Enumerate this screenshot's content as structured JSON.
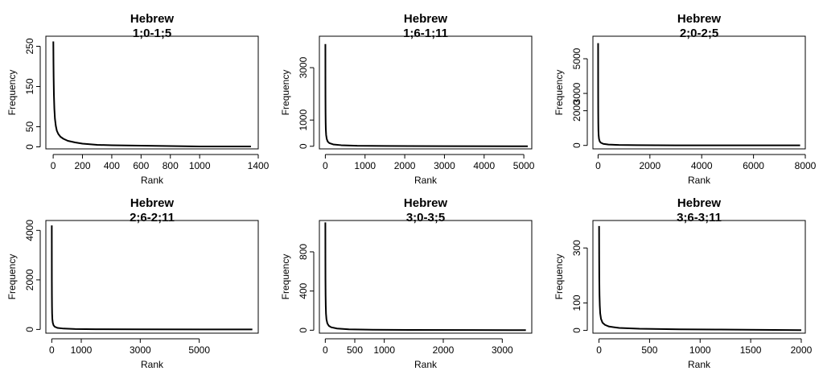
{
  "chart_data": [
    {
      "type": "line",
      "title": "Hebrew",
      "subtitle": "1;0-1;5",
      "xlabel": "Rank",
      "ylabel": "Frequency",
      "xlim": [
        -50,
        1400
      ],
      "ylim": [
        -5,
        275
      ],
      "xticks": [
        0,
        200,
        400,
        600,
        800,
        1000,
        1400
      ],
      "yticks": [
        0,
        50,
        150,
        250
      ],
      "x": [
        1,
        2,
        3,
        5,
        8,
        12,
        18,
        25,
        35,
        50,
        70,
        100,
        150,
        200,
        300,
        400,
        600,
        800,
        1000,
        1200,
        1350
      ],
      "y": [
        262,
        210,
        175,
        130,
        95,
        70,
        52,
        40,
        32,
        25,
        20,
        15,
        11,
        8,
        5,
        4,
        3,
        2,
        1,
        1,
        1
      ]
    },
    {
      "type": "line",
      "title": "Hebrew",
      "subtitle": "1;6-1;11",
      "xlabel": "Rank",
      "ylabel": "Frequency",
      "xlim": [
        -150,
        5200
      ],
      "ylim": [
        -100,
        4200
      ],
      "xticks": [
        0,
        1000,
        2000,
        3000,
        4000,
        5000
      ],
      "yticks": [
        0,
        1000,
        3000
      ],
      "x": [
        1,
        2,
        3,
        5,
        8,
        12,
        20,
        35,
        60,
        100,
        200,
        400,
        800,
        1500,
        3000,
        5100
      ],
      "y": [
        3900,
        2600,
        1900,
        1300,
        900,
        650,
        430,
        280,
        180,
        120,
        70,
        40,
        20,
        10,
        4,
        1
      ]
    },
    {
      "type": "line",
      "title": "Hebrew",
      "subtitle": "2;0-2;5",
      "xlabel": "Rank",
      "ylabel": "Frequency",
      "xlim": [
        -200,
        8000
      ],
      "ylim": [
        -200,
        6300
      ],
      "xticks": [
        0,
        2000,
        4000,
        6000,
        8000
      ],
      "yticks": [
        0,
        2000,
        3000,
        5000
      ],
      "x": [
        1,
        2,
        3,
        5,
        8,
        12,
        20,
        35,
        60,
        100,
        200,
        400,
        800,
        1500,
        3000,
        5000,
        7800
      ],
      "y": [
        5900,
        3900,
        2800,
        1900,
        1300,
        900,
        600,
        380,
        240,
        160,
        90,
        50,
        25,
        12,
        5,
        2,
        1
      ]
    },
    {
      "type": "line",
      "title": "Hebrew",
      "subtitle": "2;6-2;11",
      "xlabel": "Rank",
      "ylabel": "Frequency",
      "xlim": [
        -200,
        7000
      ],
      "ylim": [
        -150,
        4400
      ],
      "xticks": [
        0,
        1000,
        3000,
        5000
      ],
      "yticks": [
        0,
        2000,
        4000
      ],
      "x": [
        1,
        2,
        3,
        5,
        8,
        12,
        20,
        35,
        60,
        100,
        200,
        400,
        800,
        1500,
        3000,
        5000,
        6800
      ],
      "y": [
        4200,
        2800,
        2000,
        1400,
        950,
        650,
        420,
        270,
        170,
        110,
        60,
        35,
        18,
        9,
        4,
        2,
        1
      ]
    },
    {
      "type": "line",
      "title": "Hebrew",
      "subtitle": "3;0-3;5",
      "xlabel": "Rank",
      "ylabel": "Frequency",
      "xlim": [
        -100,
        3500
      ],
      "ylim": [
        -30,
        1120
      ],
      "xticks": [
        0,
        500,
        1000,
        2000,
        3000
      ],
      "yticks": [
        0,
        400,
        800
      ],
      "x": [
        1,
        2,
        3,
        5,
        8,
        12,
        20,
        35,
        60,
        100,
        200,
        400,
        800,
        1500,
        2500,
        3400
      ],
      "y": [
        1100,
        720,
        520,
        360,
        250,
        170,
        110,
        70,
        45,
        30,
        17,
        9,
        5,
        3,
        2,
        1
      ]
    },
    {
      "type": "line",
      "title": "Hebrew",
      "subtitle": "3;6-3;11",
      "xlabel": "Rank",
      "ylabel": "Frequency",
      "xlim": [
        -60,
        2040
      ],
      "ylim": [
        -10,
        400
      ],
      "xticks": [
        0,
        500,
        1000,
        1500,
        2000
      ],
      "yticks": [
        0,
        100,
        300
      ],
      "x": [
        1,
        2,
        3,
        5,
        8,
        12,
        20,
        35,
        60,
        100,
        200,
        400,
        800,
        1200,
        1600,
        2000
      ],
      "y": [
        380,
        260,
        190,
        130,
        90,
        62,
        42,
        28,
        20,
        14,
        9,
        6,
        4,
        3,
        2,
        1
      ]
    }
  ]
}
